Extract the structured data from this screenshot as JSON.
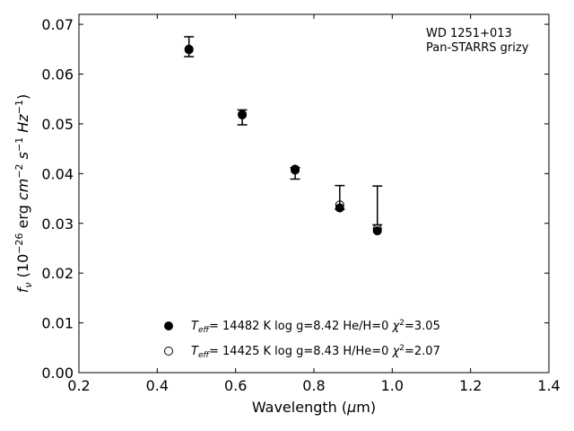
{
  "chart_data": {
    "type": "scatter",
    "xlabel": "Wavelength (μm)",
    "ylabel": "fν (10⁻²⁶ erg cm⁻² s⁻¹ Hz⁻¹)",
    "xlim": [
      0.2,
      1.4
    ],
    "ylim": [
      0.0,
      0.072
    ],
    "x_ticks": [
      "0.2",
      "0.4",
      "0.6",
      "0.8",
      "1.0",
      "1.2",
      "1.4"
    ],
    "y_ticks": [
      "0.00",
      "0.01",
      "0.02",
      "0.03",
      "0.04",
      "0.05",
      "0.06",
      "0.07"
    ],
    "annotation_lines": [
      "WD 1251+013",
      "Pan-STARRS grizy"
    ],
    "observed": {
      "x": [
        0.481,
        0.617,
        0.752,
        0.866,
        0.962
      ],
      "y": [
        0.0654,
        0.0514,
        0.0404,
        0.0352,
        0.0336
      ],
      "yerr_low": [
        0.0019,
        0.0016,
        0.0015,
        0.0024,
        0.0039
      ],
      "yerr_high": [
        0.0021,
        0.0014,
        0.0008,
        0.0024,
        0.0039
      ]
    },
    "series": [
      {
        "name": "Teff= 14482 K  log g=8.42  He/H=0  χ²=3.05",
        "marker": "filled-circle",
        "x": [
          0.481,
          0.617,
          0.752,
          0.866,
          0.962
        ],
        "y": [
          0.065,
          0.0518,
          0.0409,
          0.0331,
          0.0285
        ]
      },
      {
        "name": "Teff= 14425 K  log g=8.43  H/He=0  χ²=2.07",
        "marker": "open-circle",
        "x": [
          0.481,
          0.617,
          0.752,
          0.866,
          0.962
        ],
        "y": [
          0.0649,
          0.0519,
          0.0407,
          0.0337,
          0.0289
        ]
      }
    ],
    "legend_placement": "lower-center",
    "grid": false
  }
}
